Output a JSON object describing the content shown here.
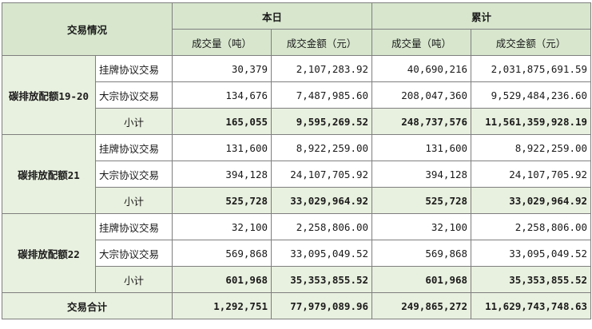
{
  "header": {
    "trade_info": "交易情况",
    "today": "本日",
    "cumulative": "累计",
    "volume": "成交量（吨）",
    "amount": "成交金额（元）"
  },
  "groups": [
    {
      "name": "碳排放配额19-20",
      "rows": [
        {
          "type": "挂牌协议交易",
          "today_volume": "30,379",
          "today_amount": "2,107,283.92",
          "cum_volume": "40,690,216",
          "cum_amount": "2,031,875,691.59"
        },
        {
          "type": "大宗协议交易",
          "today_volume": "134,676",
          "today_amount": "7,487,985.60",
          "cum_volume": "208,047,360",
          "cum_amount": "9,529,484,236.60"
        }
      ],
      "subtotal": {
        "type": "小计",
        "today_volume": "165,055",
        "today_amount": "9,595,269.52",
        "cum_volume": "248,737,576",
        "cum_amount": "11,561,359,928.19"
      }
    },
    {
      "name": "碳排放配额21",
      "rows": [
        {
          "type": "挂牌协议交易",
          "today_volume": "131,600",
          "today_amount": "8,922,259.00",
          "cum_volume": "131,600",
          "cum_amount": "8,922,259.00"
        },
        {
          "type": "大宗协议交易",
          "today_volume": "394,128",
          "today_amount": "24,107,705.92",
          "cum_volume": "394,128",
          "cum_amount": "24,107,705.92"
        }
      ],
      "subtotal": {
        "type": "小计",
        "today_volume": "525,728",
        "today_amount": "33,029,964.92",
        "cum_volume": "525,728",
        "cum_amount": "33,029,964.92"
      }
    },
    {
      "name": "碳排放配额22",
      "rows": [
        {
          "type": "挂牌协议交易",
          "today_volume": "32,100",
          "today_amount": "2,258,806.00",
          "cum_volume": "32,100",
          "cum_amount": "2,258,806.00"
        },
        {
          "type": "大宗协议交易",
          "today_volume": "569,868",
          "today_amount": "33,095,049.52",
          "cum_volume": "569,868",
          "cum_amount": "33,095,049.52"
        }
      ],
      "subtotal": {
        "type": "小计",
        "today_volume": "601,968",
        "today_amount": "35,353,855.52",
        "cum_volume": "601,968",
        "cum_amount": "35,353,855.52"
      }
    }
  ],
  "total": {
    "label": "交易合计",
    "today_volume": "1,292,751",
    "today_amount": "77,979,089.96",
    "cum_volume": "249,865,272",
    "cum_amount": "11,629,743,748.63"
  }
}
